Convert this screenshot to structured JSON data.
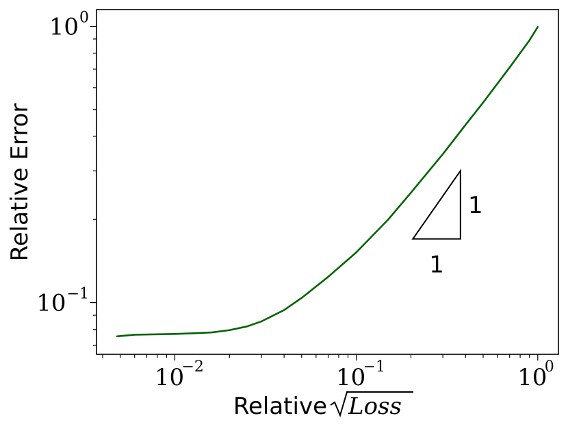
{
  "chart_data": {
    "type": "line",
    "xscale": "log",
    "yscale": "log",
    "xlim": [
      0.0037,
      1.3
    ],
    "ylim": [
      0.065,
      1.15
    ],
    "xlabel_prefix": "Relative",
    "xlabel_math": "Loss",
    "ylabel": "Relative Error",
    "grid": false,
    "x_ticks": [
      {
        "base": "10",
        "exp": "−2",
        "value": 0.01
      },
      {
        "base": "10",
        "exp": "−1",
        "value": 0.1
      },
      {
        "base": "10",
        "exp": "0",
        "value": 1
      }
    ],
    "y_ticks": [
      {
        "base": "10",
        "exp": "−1",
        "value": 0.1
      },
      {
        "base": "10",
        "exp": "0",
        "value": 1
      }
    ],
    "series": [
      {
        "color": "#006400",
        "x": [
          0.0048,
          0.006,
          0.008,
          0.01,
          0.013,
          0.016,
          0.02,
          0.025,
          0.03,
          0.04,
          0.05,
          0.07,
          0.1,
          0.15,
          0.2,
          0.3,
          0.4,
          0.5,
          0.7,
          0.9,
          1.0
        ],
        "y": [
          0.0755,
          0.0765,
          0.0768,
          0.077,
          0.0775,
          0.078,
          0.0795,
          0.082,
          0.0855,
          0.094,
          0.104,
          0.124,
          0.152,
          0.2,
          0.25,
          0.345,
          0.44,
          0.53,
          0.71,
          0.89,
          0.995
        ]
      }
    ],
    "slope_triangle": {
      "x0": 0.205,
      "x1": 0.375,
      "y0": 0.17,
      "y1": 0.3,
      "run_label": "1",
      "rise_label": "1"
    }
  }
}
